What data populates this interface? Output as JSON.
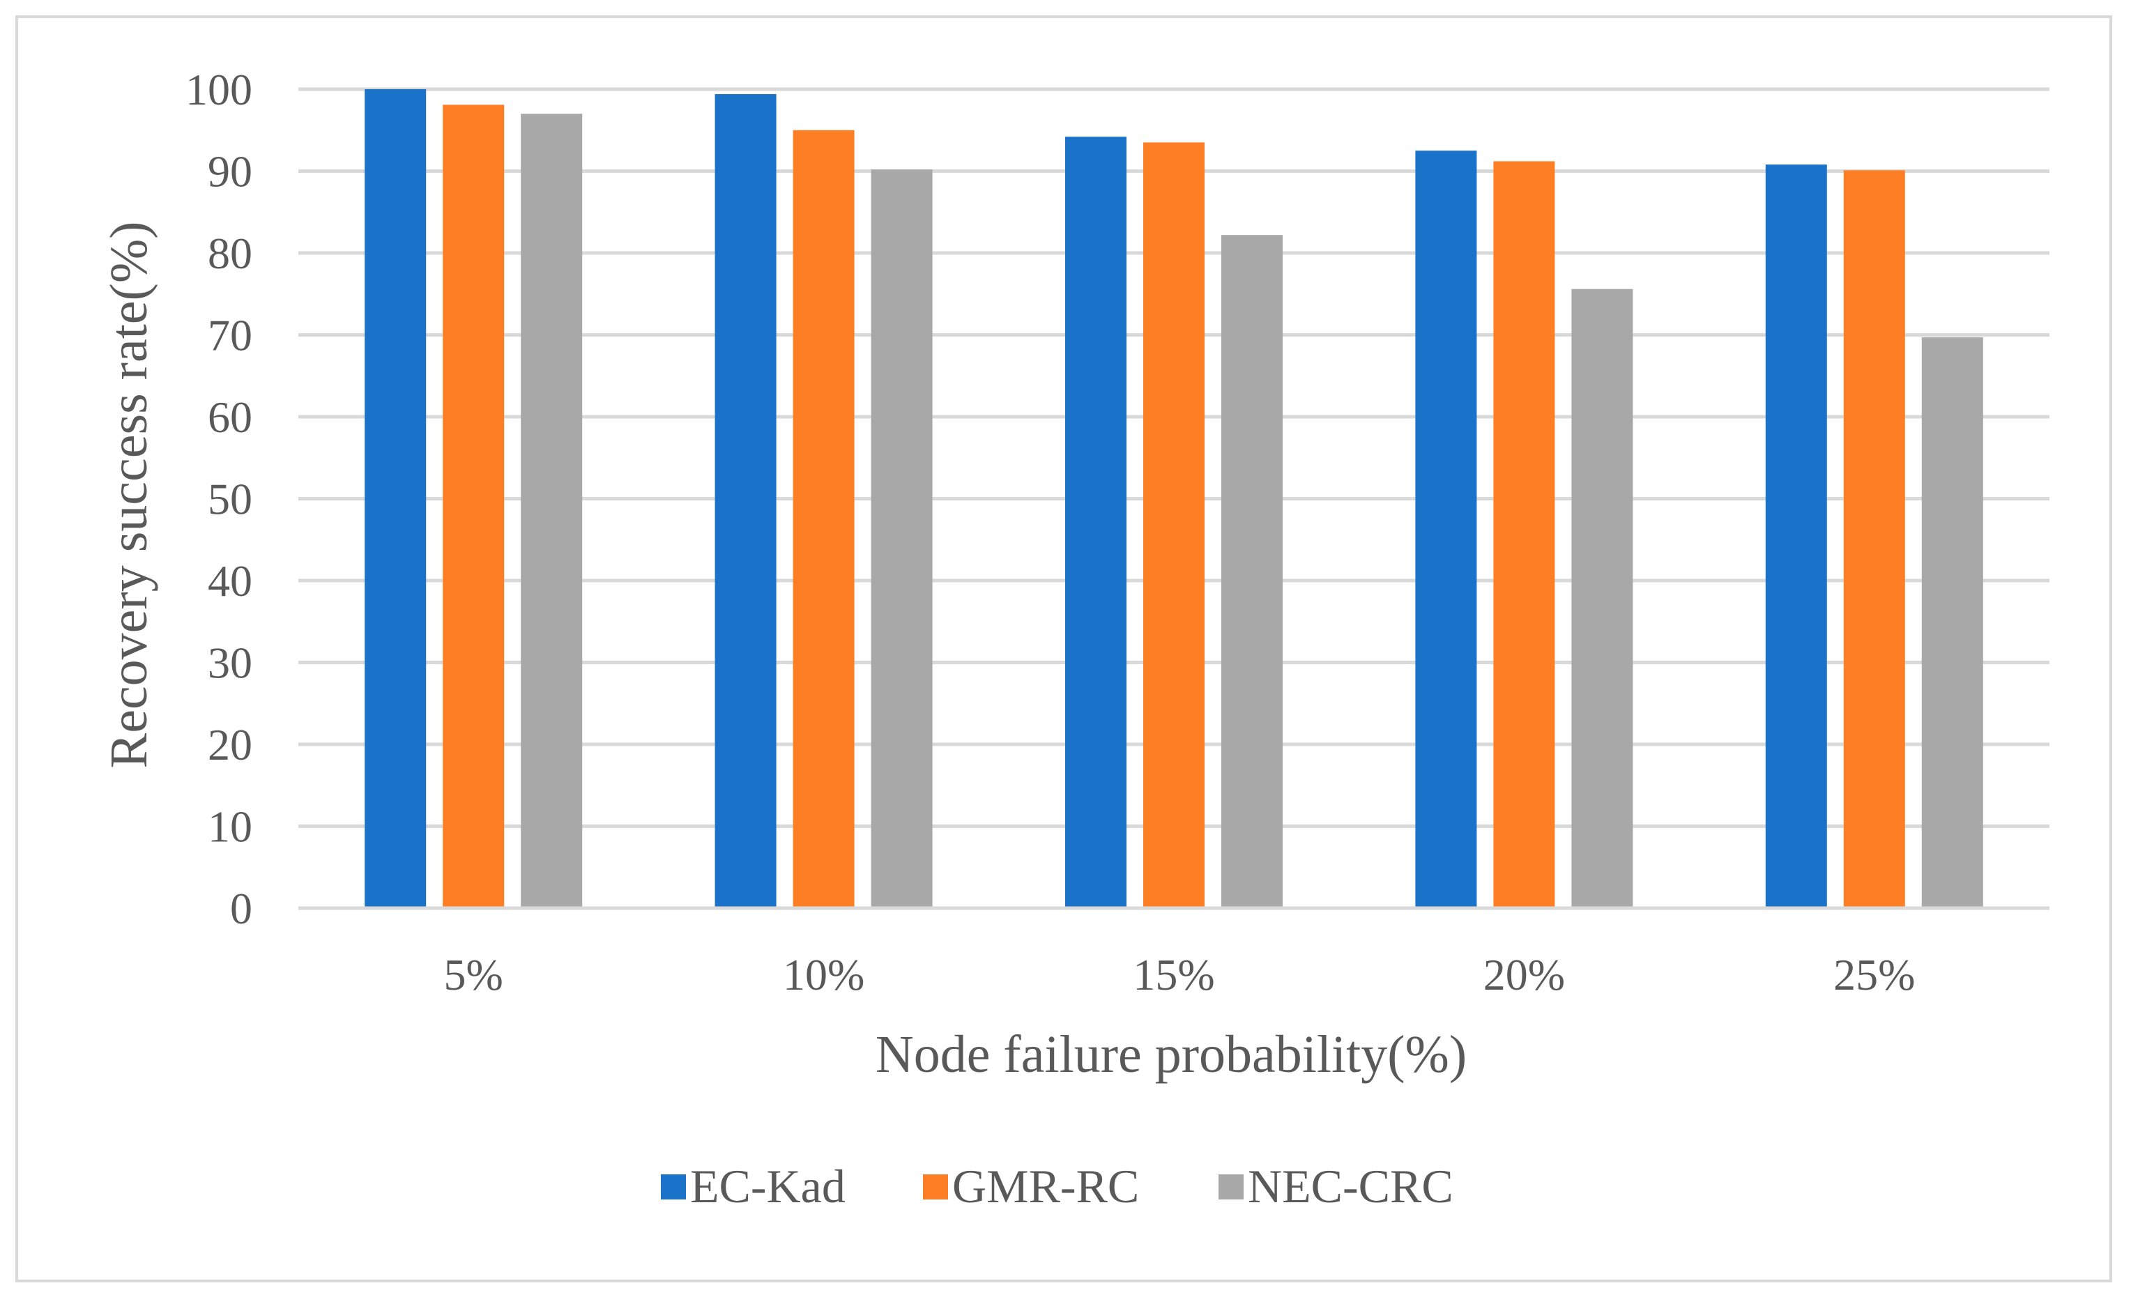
{
  "chart_data": {
    "type": "bar",
    "title": "",
    "xlabel": "Node failure probability(%)",
    "ylabel": "Recovery success rate(%)",
    "categories": [
      "5%",
      "10%",
      "15%",
      "20%",
      "25%"
    ],
    "ylim": [
      0,
      100
    ],
    "yticks": [
      0,
      10,
      20,
      30,
      40,
      50,
      60,
      70,
      80,
      90,
      100
    ],
    "grid": true,
    "legend_position": "bottom",
    "series": [
      {
        "name": "EC-Kad",
        "color": "#1a73c8",
        "values": [
          100,
          99.4,
          94.2,
          92.5,
          90.8
        ]
      },
      {
        "name": "GMR-RC",
        "color": "#fd7e24",
        "values": [
          98.1,
          95.0,
          93.5,
          91.2,
          90.1
        ]
      },
      {
        "name": "NEC-CRC",
        "color": "#a8a8a8",
        "values": [
          97.0,
          90.2,
          82.2,
          75.6,
          69.7
        ]
      }
    ]
  }
}
